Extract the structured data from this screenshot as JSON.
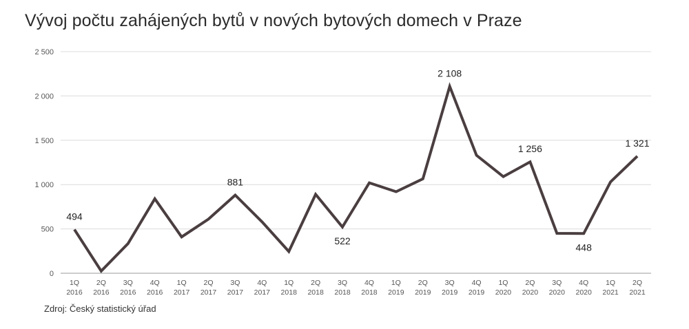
{
  "chart_data": {
    "type": "line",
    "title": "Vývoj počtu zahájených bytů v nových bytových domech v Praze",
    "source": "Zdroj: Český statistický úřad",
    "xlabel": "",
    "ylabel": "",
    "ylim": [
      0,
      2500
    ],
    "yticks": [
      0,
      500,
      1000,
      1500,
      2000,
      2500
    ],
    "ytick_labels": [
      "0",
      "500",
      "1 000",
      "1 500",
      "2 000",
      "2 500"
    ],
    "grid": true,
    "legend": "none",
    "line_color": "#4a3e40",
    "categories": [
      [
        "1Q",
        "2016"
      ],
      [
        "2Q",
        "2016"
      ],
      [
        "3Q",
        "2016"
      ],
      [
        "4Q",
        "2016"
      ],
      [
        "1Q",
        "2017"
      ],
      [
        "2Q",
        "2017"
      ],
      [
        "3Q",
        "2017"
      ],
      [
        "4Q",
        "2017"
      ],
      [
        "1Q",
        "2018"
      ],
      [
        "2Q",
        "2018"
      ],
      [
        "3Q",
        "2018"
      ],
      [
        "4Q",
        "2018"
      ],
      [
        "1Q",
        "2019"
      ],
      [
        "2Q",
        "2019"
      ],
      [
        "3Q",
        "2019"
      ],
      [
        "4Q",
        "2019"
      ],
      [
        "1Q",
        "2020"
      ],
      [
        "2Q",
        "2020"
      ],
      [
        "3Q",
        "2020"
      ],
      [
        "4Q",
        "2020"
      ],
      [
        "1Q",
        "2021"
      ],
      [
        "2Q",
        "2021"
      ]
    ],
    "values": [
      494,
      25,
      335,
      840,
      410,
      610,
      881,
      580,
      245,
      890,
      522,
      1020,
      920,
      1065,
      2108,
      1330,
      1090,
      1256,
      450,
      448,
      1030,
      1321
    ],
    "data_labels": [
      {
        "index": 0,
        "text": "494",
        "position": "above"
      },
      {
        "index": 6,
        "text": "881",
        "position": "above"
      },
      {
        "index": 10,
        "text": "522",
        "position": "below"
      },
      {
        "index": 14,
        "text": "2 108",
        "position": "above"
      },
      {
        "index": 17,
        "text": "1 256",
        "position": "above"
      },
      {
        "index": 19,
        "text": "448",
        "position": "below"
      },
      {
        "index": 21,
        "text": "1 321",
        "position": "above"
      }
    ]
  }
}
